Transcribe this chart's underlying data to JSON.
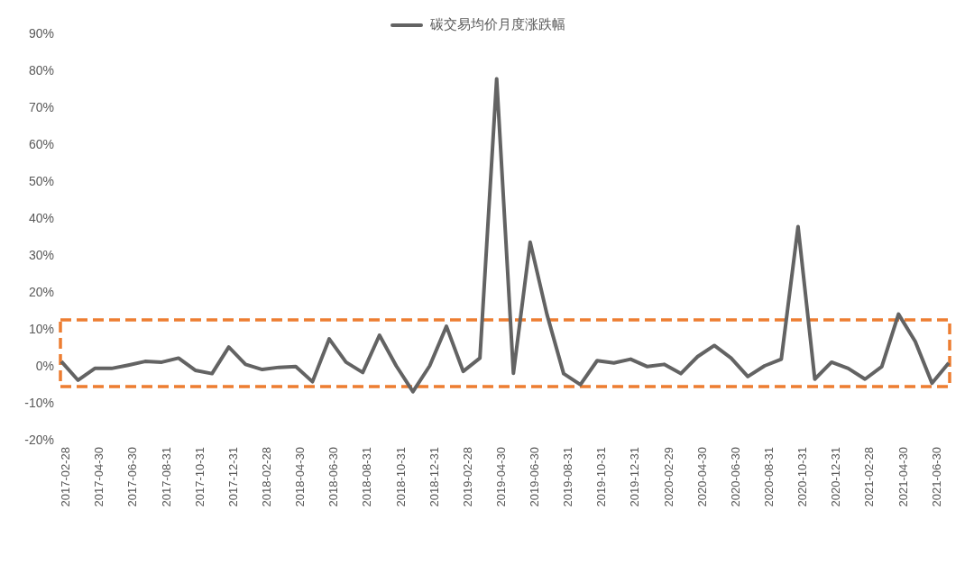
{
  "chart_data": {
    "type": "line",
    "categories": [
      "2017-02-28",
      null,
      "2017-04-30",
      null,
      "2017-06-30",
      null,
      "2017-08-31",
      null,
      "2017-10-31",
      null,
      "2017-12-31",
      null,
      "2018-02-28",
      null,
      "2018-04-30",
      null,
      "2018-06-30",
      null,
      "2018-08-31",
      null,
      "2018-10-31",
      null,
      "2018-12-31",
      null,
      "2019-02-28",
      null,
      "2019-04-30",
      null,
      "2019-06-30",
      null,
      "2019-08-31",
      null,
      "2019-10-31",
      null,
      "2019-12-31",
      null,
      "2020-02-29",
      null,
      "2020-04-30",
      null,
      "2020-06-30",
      null,
      "2020-08-31",
      null,
      "2020-10-31",
      null,
      "2020-12-31",
      null,
      "2021-02-28",
      null,
      "2021-04-30",
      null,
      "2021-06-30",
      null
    ],
    "series": [
      {
        "name": "碳交易均价月度涨跌幅",
        "color": "#636363",
        "values": [
          1.2,
          -3.9,
          -0.7,
          -0.7,
          0.2,
          1.2,
          1.0,
          2.1,
          -1.2,
          -2.1,
          5.1,
          0.4,
          -1.0,
          -0.4,
          -0.2,
          -4.3,
          7.3,
          1.0,
          -1.8,
          8.3,
          0,
          -7.0,
          0,
          10.7,
          -1.5,
          2.1,
          77.7,
          -2.0,
          33.5,
          14,
          -2.1,
          -5.1,
          1.4,
          0.8,
          1.8,
          -0.2,
          0.4,
          -2.1,
          2.5,
          5.5,
          2.1,
          -2.9,
          0,
          1.8,
          37.7,
          -3.6,
          1.0,
          -0.7,
          -3.6,
          -0.2,
          14.0,
          6.6,
          -4.7,
          0.8
        ]
      }
    ],
    "ylim": [
      -20,
      90
    ],
    "yticks": [
      {
        "value": -20,
        "label": "-20%"
      },
      {
        "value": -10,
        "label": "-10%"
      },
      {
        "value": 0,
        "label": "0%"
      },
      {
        "value": 10,
        "label": "10%"
      },
      {
        "value": 20,
        "label": "20%"
      },
      {
        "value": 30,
        "label": "30%"
      },
      {
        "value": 40,
        "label": "40%"
      },
      {
        "value": 50,
        "label": "50%"
      },
      {
        "value": 60,
        "label": "60%"
      },
      {
        "value": 70,
        "label": "70%"
      },
      {
        "value": 80,
        "label": "80%"
      },
      {
        "value": 90,
        "label": "90%"
      }
    ],
    "legend": "top",
    "marker": "none",
    "line_style": "solid"
  }
}
